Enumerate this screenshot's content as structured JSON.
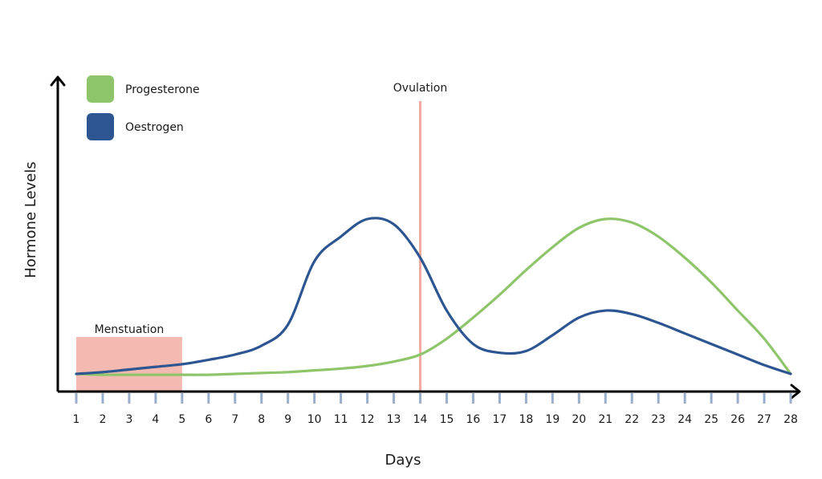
{
  "chart_data": {
    "type": "line",
    "title": "",
    "xlabel": "Days",
    "ylabel": "Hormone Levels",
    "x": [
      1,
      2,
      3,
      4,
      5,
      6,
      7,
      8,
      9,
      10,
      11,
      12,
      13,
      14,
      15,
      16,
      17,
      18,
      19,
      20,
      21,
      22,
      23,
      24,
      25,
      26,
      27,
      28
    ],
    "xlim": [
      1,
      28
    ],
    "ylim": [
      0,
      100
    ],
    "grid": false,
    "legend_position": "top-left",
    "series": [
      {
        "name": "Progesterone",
        "color": "#8ec56a",
        "values": [
          10,
          9.5,
          9.5,
          9.5,
          9.5,
          9.5,
          10,
          10.5,
          11,
          12,
          13,
          14.5,
          17,
          21,
          30,
          42,
          55,
          69,
          82,
          93,
          98,
          96,
          88,
          76,
          62,
          46,
          30,
          10
        ]
      },
      {
        "name": "Oestrogen",
        "color": "#2c5592",
        "values": [
          10,
          11,
          12.5,
          14,
          15.5,
          18,
          21,
          26,
          38,
          74,
          88,
          98,
          95,
          76,
          46,
          27,
          22,
          23,
          32,
          42,
          46,
          44,
          39,
          33,
          27,
          21,
          15,
          10
        ]
      }
    ],
    "annotations": {
      "ovulation_label": "Ovulation",
      "ovulation_day": 14,
      "ovulation_color": "#f2aba0",
      "menstruation_label": "Menstuation",
      "menstruation_start_day": 1,
      "menstruation_end_day": 5,
      "menstruation_color": "#f4b9b0"
    },
    "colors": {
      "axis": "#000000",
      "tick": "#9aaecb"
    }
  }
}
